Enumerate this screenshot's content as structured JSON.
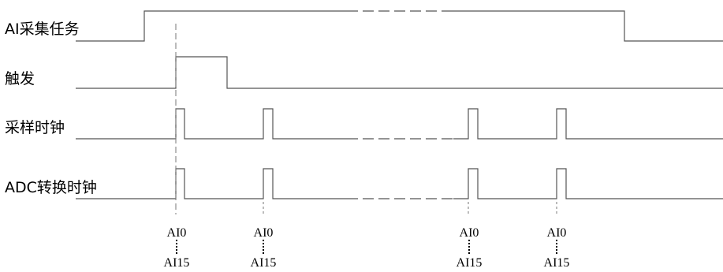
{
  "signals": {
    "task": "AI采集任务",
    "trigger": "触发",
    "sample_clock": "采样时钟",
    "adc_clock": "ADC转换时钟"
  },
  "channel_labels": [
    {
      "first": "AI0",
      "last": "AI15"
    },
    {
      "first": "AI0",
      "last": "AI15"
    },
    {
      "first": "AI0",
      "last": "AI15"
    },
    {
      "first": "AI0",
      "last": "AI15"
    }
  ],
  "colors": {
    "line": "#555555",
    "dash": "#777777"
  }
}
